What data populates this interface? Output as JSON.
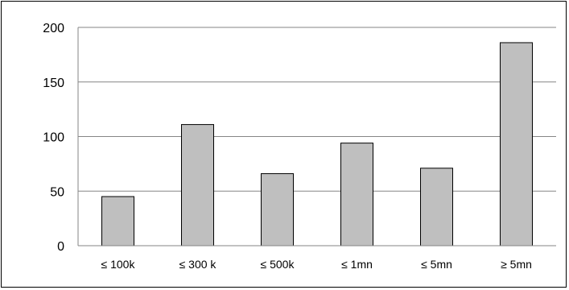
{
  "chart_data": {
    "type": "bar",
    "title": "",
    "xlabel": "",
    "ylabel": "",
    "categories": [
      "≤ 100k",
      "≤ 300 k",
      "≤ 500k",
      "≤ 1mn",
      "≤  5mn",
      "≥ 5mn"
    ],
    "values": [
      45,
      111,
      66,
      94,
      71,
      186
    ],
    "ylim": [
      0,
      200
    ],
    "yticks": [
      0,
      50,
      100,
      150,
      200
    ],
    "grid": true,
    "legend": "none",
    "colors": {
      "bar_fill": "#bfbfbf",
      "bar_stroke": "#000000",
      "grid": "#868686",
      "axis": "#868686"
    }
  }
}
